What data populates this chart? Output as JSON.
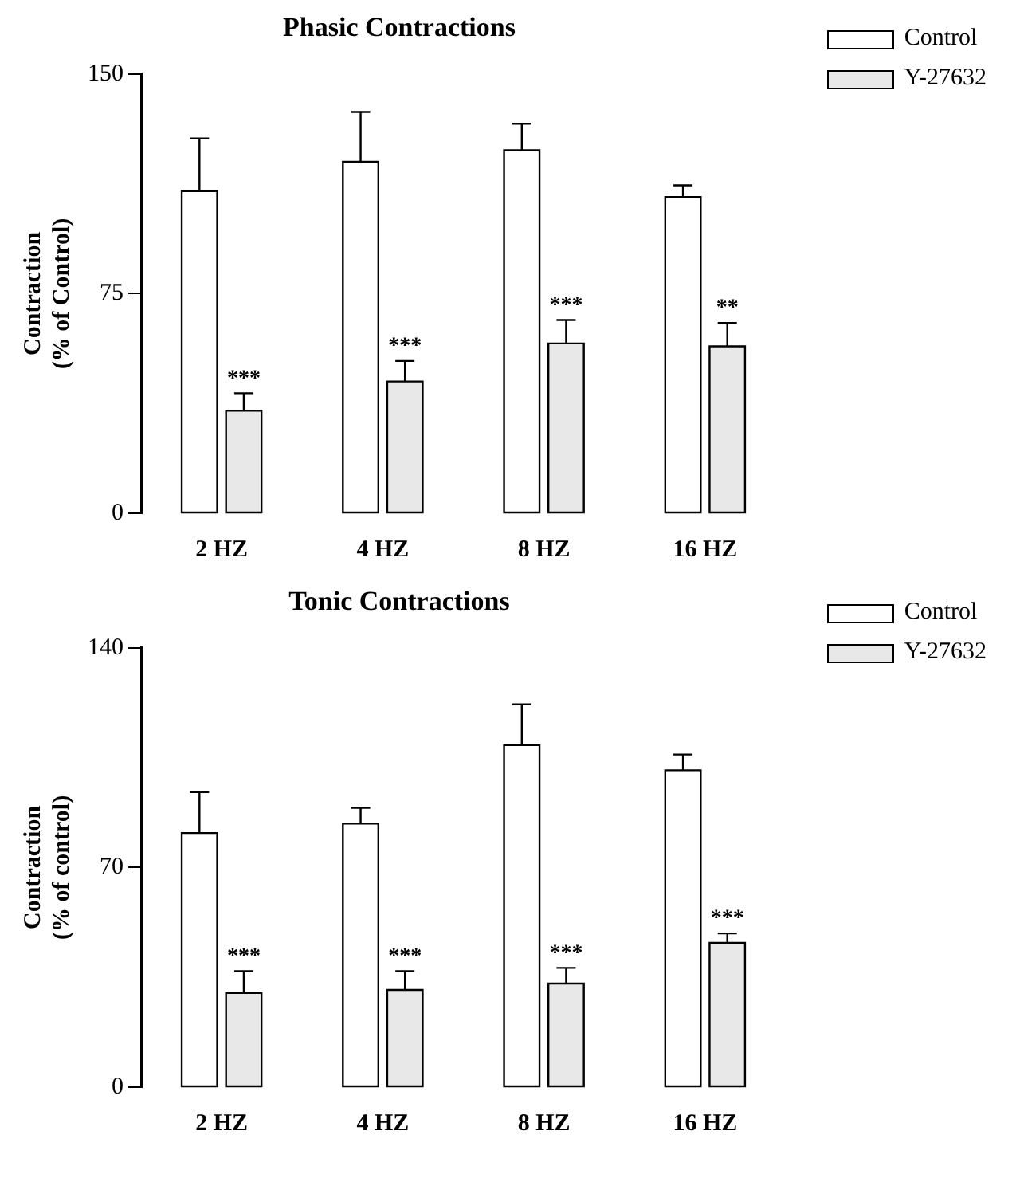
{
  "chart_data": [
    {
      "type": "bar",
      "title": "Phasic Contractions",
      "ylabel": "Contraction\n(% of Control)",
      "categories": [
        "2 HZ",
        "4 HZ",
        "8 HZ",
        "16 HZ"
      ],
      "series": [
        {
          "name": "Control",
          "color": "#ffffff",
          "values": [
            110,
            120,
            124,
            108
          ],
          "errors": [
            [
              110,
              128
            ],
            [
              120,
              137
            ],
            [
              124,
              133
            ],
            [
              108,
              112
            ]
          ]
        },
        {
          "name": "Y-27632",
          "color": "#e8e8e8",
          "values": [
            35,
            45,
            58,
            57
          ],
          "errors": [
            [
              35,
              41
            ],
            [
              45,
              52
            ],
            [
              58,
              66
            ],
            [
              57,
              65
            ]
          ]
        }
      ],
      "ylim": [
        0,
        150
      ],
      "yticks": [
        0,
        75,
        150
      ],
      "grid": false,
      "legend": "top right",
      "annotations": [
        {
          "text": "***",
          "x": "2 HZ",
          "y": 41
        },
        {
          "text": "***",
          "x": "4 HZ",
          "y": 52
        },
        {
          "text": "***",
          "x": "8 HZ",
          "y": 66
        },
        {
          "text": "**",
          "x": "16 HZ",
          "y": 65
        }
      ]
    },
    {
      "type": "bar",
      "title": "Tonic Contractions",
      "ylabel": "Contraction\n(% of control)",
      "categories": [
        "2 HZ",
        "4 HZ",
        "8 HZ",
        "16 HZ"
      ],
      "series": [
        {
          "name": "Control",
          "color": "#ffffff",
          "values": [
            81,
            84,
            109,
            101
          ],
          "errors": [
            [
              81,
              94
            ],
            [
              84,
              89
            ],
            [
              109,
              122
            ],
            [
              101,
              106
            ]
          ]
        },
        {
          "name": "Y-27632",
          "color": "#e8e8e8",
          "values": [
            30,
            31,
            33,
            46
          ],
          "errors": [
            [
              30,
              37
            ],
            [
              31,
              37
            ],
            [
              33,
              38
            ],
            [
              46,
              49
            ]
          ]
        }
      ],
      "ylim": [
        0,
        140
      ],
      "yticks": [
        0,
        70,
        140
      ],
      "grid": false,
      "legend": "top right",
      "annotations": [
        {
          "text": "***",
          "x": "2 HZ",
          "y": 37
        },
        {
          "text": "***",
          "x": "4 HZ",
          "y": 37
        },
        {
          "text": "***",
          "x": "8 HZ",
          "y": 38
        },
        {
          "text": "***",
          "x": "16 HZ",
          "y": 49
        }
      ]
    }
  ]
}
